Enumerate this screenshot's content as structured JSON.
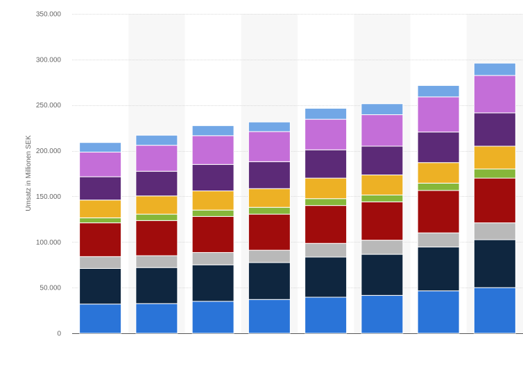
{
  "chart_data": {
    "type": "bar",
    "stacked": true,
    "title": "",
    "xlabel": "",
    "ylabel": "Umsatz in Millionen SEK",
    "ylim": [
      0,
      350000
    ],
    "yticks": [
      0,
      50000,
      100000,
      150000,
      200000,
      250000,
      300000,
      350000
    ],
    "ytick_labels": [
      "0",
      "50.000",
      "100.000",
      "150.000",
      "200.000",
      "250.000",
      "300.000",
      "350.000"
    ],
    "categories": [
      "",
      "",
      "",
      "",
      "",
      "",
      "",
      ""
    ],
    "grid": true,
    "legend": "none",
    "series": [
      {
        "color": "#2a74d8",
        "values": [
          32000,
          32500,
          35000,
          37000,
          39500,
          41500,
          46500,
          50000
        ]
      },
      {
        "color": "#0f263f",
        "values": [
          39000,
          39500,
          40000,
          40500,
          44000,
          45000,
          48000,
          52500
        ]
      },
      {
        "color": "#b9b9b9",
        "values": [
          13000,
          13000,
          13500,
          13500,
          15000,
          15500,
          15500,
          18500
        ]
      },
      {
        "color": "#a00c0c",
        "values": [
          37000,
          38500,
          39500,
          39500,
          41500,
          42000,
          46500,
          49000
        ]
      },
      {
        "color": "#86b73a",
        "values": [
          5500,
          7000,
          7000,
          7500,
          7500,
          7500,
          8000,
          10000
        ]
      },
      {
        "color": "#edb125",
        "values": [
          19500,
          20000,
          21000,
          20500,
          22500,
          22000,
          22500,
          25000
        ]
      },
      {
        "color": "#5c2a77",
        "values": [
          25500,
          27000,
          29000,
          29500,
          31000,
          31500,
          33500,
          36500
        ]
      },
      {
        "color": "#c46ed8",
        "values": [
          27000,
          28500,
          31500,
          33000,
          33500,
          34500,
          38500,
          41000
        ]
      },
      {
        "color": "#72a7e6",
        "values": [
          10500,
          11000,
          11000,
          10500,
          12000,
          12000,
          12500,
          13500
        ]
      }
    ]
  }
}
